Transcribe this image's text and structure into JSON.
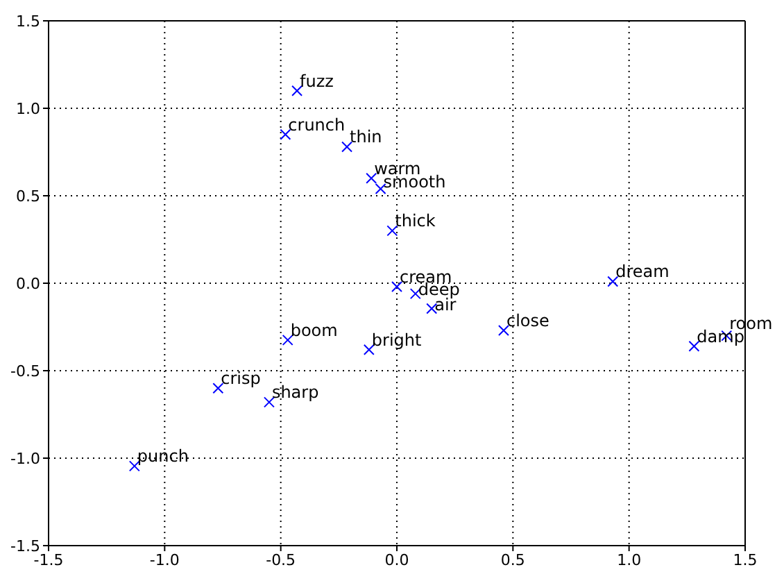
{
  "chart_data": {
    "type": "scatter",
    "marker": "cross",
    "grid": true,
    "xlim": [
      -1.5,
      1.5
    ],
    "xticks": [
      -1.5,
      {
        "value": -1,
        "label": "-1.0"
      },
      -0.5,
      {
        "value": 0,
        "label": "0.0"
      },
      0.5,
      {
        "value": 1,
        "label": "1.0"
      },
      1.5
    ],
    "ylim": [
      -1.5,
      1.5
    ],
    "yticks": [
      -1.5,
      {
        "value": -1,
        "label": "-1.0"
      },
      -0.5,
      {
        "value": 0,
        "label": "0.0"
      },
      0.5,
      {
        "value": 1,
        "label": "1.0"
      },
      1.5
    ],
    "series": [
      {
        "color": "#0000ff",
        "x": [
          -0.43,
          -0.48,
          -0.215,
          -0.11,
          -0.07,
          -0.02,
          0.0,
          0.08,
          0.15,
          0.46,
          0.93,
          1.28,
          1.42,
          -0.12,
          -0.47,
          -0.77,
          -0.55,
          -1.13
        ],
        "values": [
          1.1,
          0.85,
          0.78,
          0.6,
          0.54,
          0.3,
          -0.02,
          -0.06,
          -0.145,
          -0.27,
          0.01,
          -0.36,
          -0.3,
          -0.38,
          -0.325,
          -0.6,
          -0.68,
          -1.045
        ]
      }
    ],
    "annotations": [
      {
        "text": "fuzz",
        "x": -0.43,
        "y": 1.1
      },
      {
        "text": "crunch",
        "x": -0.48,
        "y": 0.85
      },
      {
        "text": "thin",
        "x": -0.215,
        "y": 0.78
      },
      {
        "text": "warm",
        "x": -0.11,
        "y": 0.6
      },
      {
        "text": "smooth",
        "x": -0.07,
        "y": 0.54
      },
      {
        "text": "thick",
        "x": -0.02,
        "y": 0.3
      },
      {
        "text": "cream",
        "x": 0.0,
        "y": -0.02
      },
      {
        "text": "deep",
        "x": 0.08,
        "y": -0.06
      },
      {
        "text": "air",
        "x": 0.15,
        "y": -0.145
      },
      {
        "text": "close",
        "x": 0.46,
        "y": -0.27
      },
      {
        "text": "dream",
        "x": 0.93,
        "y": 0.01
      },
      {
        "text": "damp",
        "x": 1.28,
        "y": -0.36
      },
      {
        "text": "room",
        "x": 1.42,
        "y": -0.3
      },
      {
        "text": "bright",
        "x": -0.12,
        "y": -0.38
      },
      {
        "text": "boom",
        "x": -0.47,
        "y": -0.325
      },
      {
        "text": "crisp",
        "x": -0.77,
        "y": -0.6
      },
      {
        "text": "sharp",
        "x": -0.55,
        "y": -0.68
      },
      {
        "text": "punch",
        "x": -1.13,
        "y": -1.045
      }
    ]
  }
}
